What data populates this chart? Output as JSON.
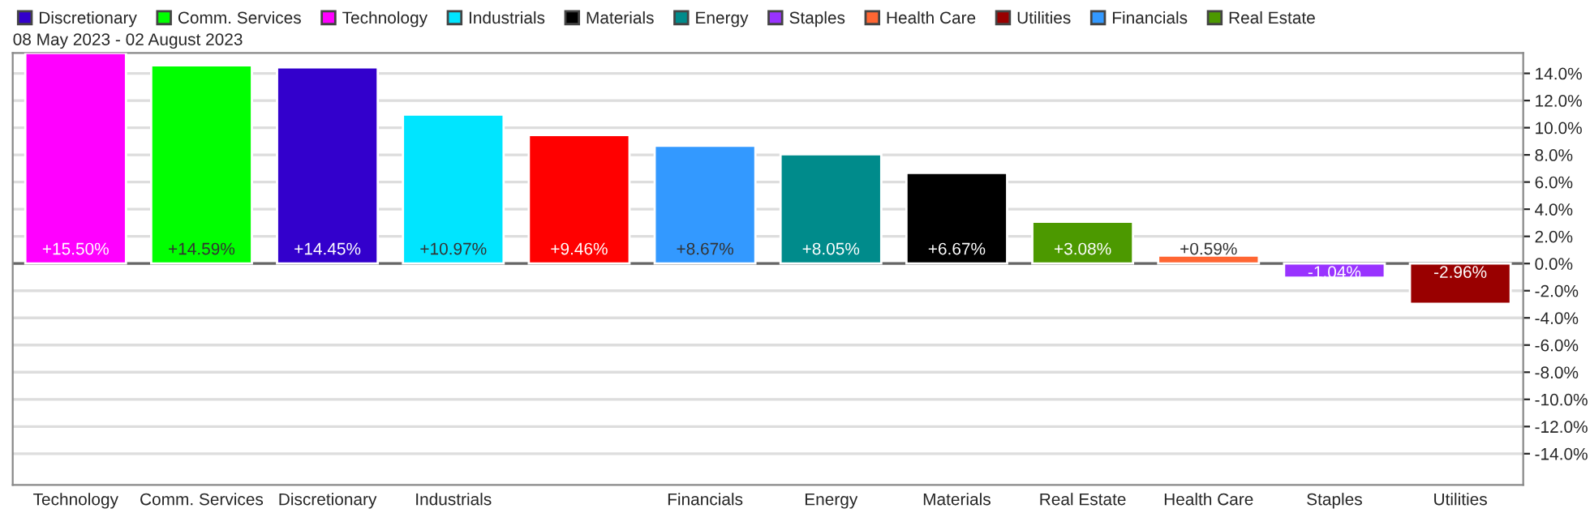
{
  "chart_data": {
    "type": "bar",
    "subtitle": "08 May 2023 - 02 August 2023",
    "categories": [
      "Technology",
      "Comm. Services",
      "Discretionary",
      "Industrials",
      null,
      "Financials",
      "Energy",
      "Materials",
      "Real Estate",
      "Health Care",
      "Staples",
      "Utilities"
    ],
    "series": [
      {
        "color": "#ff0000",
        "values": [
          null,
          null,
          null,
          null,
          9.46,
          null,
          null,
          null,
          null,
          null,
          null,
          null
        ],
        "value_labels": [
          null,
          null,
          null,
          null,
          "+9.46%",
          null,
          null,
          null,
          null,
          null,
          null,
          null
        ]
      },
      {
        "name": "Discretionary",
        "color": "#3300cc",
        "values": [
          null,
          null,
          14.45,
          null,
          null,
          null,
          null,
          null,
          null,
          null,
          null,
          null
        ],
        "value_labels": [
          null,
          null,
          "+14.45%",
          null,
          null,
          null,
          null,
          null,
          null,
          null,
          null,
          null
        ]
      },
      {
        "name": "Comm. Services",
        "color": "#00ff00",
        "values": [
          null,
          14.59,
          null,
          null,
          null,
          null,
          null,
          null,
          null,
          null,
          null,
          null
        ],
        "value_labels": [
          null,
          "+14.59%",
          null,
          null,
          null,
          null,
          null,
          null,
          null,
          null,
          null,
          null
        ]
      },
      {
        "name": "Technology",
        "color": "#ff00ff",
        "values": [
          15.5,
          null,
          null,
          null,
          null,
          null,
          null,
          null,
          null,
          null,
          null,
          null
        ],
        "value_labels": [
          "+15.50%",
          null,
          null,
          null,
          null,
          null,
          null,
          null,
          null,
          null,
          null,
          null
        ]
      },
      {
        "name": "Industrials",
        "color": "#00e5ff",
        "values": [
          null,
          null,
          null,
          10.97,
          null,
          null,
          null,
          null,
          null,
          null,
          null,
          null
        ],
        "value_labels": [
          null,
          null,
          null,
          "+10.97%",
          null,
          null,
          null,
          null,
          null,
          null,
          null,
          null
        ]
      },
      {
        "name": "Materials",
        "color": "#000000",
        "values": [
          null,
          null,
          null,
          null,
          null,
          null,
          null,
          6.67,
          null,
          null,
          null,
          null
        ],
        "value_labels": [
          null,
          null,
          null,
          null,
          null,
          null,
          null,
          "+6.67%",
          null,
          null,
          null,
          null
        ]
      },
      {
        "name": "Energy",
        "color": "#008b8b",
        "values": [
          null,
          null,
          null,
          null,
          null,
          null,
          8.05,
          null,
          null,
          null,
          null,
          null
        ],
        "value_labels": [
          null,
          null,
          null,
          null,
          null,
          null,
          "+8.05%",
          null,
          null,
          null,
          null,
          null
        ]
      },
      {
        "name": "Staples",
        "color": "#9933ff",
        "values": [
          null,
          null,
          null,
          null,
          null,
          null,
          null,
          null,
          null,
          null,
          -1.04,
          null
        ],
        "value_labels": [
          null,
          null,
          null,
          null,
          null,
          null,
          null,
          null,
          null,
          null,
          "-1.04%",
          null
        ]
      },
      {
        "name": "Health Care",
        "color": "#ff6633",
        "values": [
          null,
          null,
          null,
          null,
          null,
          null,
          null,
          null,
          null,
          0.59,
          null,
          null
        ],
        "value_labels": [
          null,
          null,
          null,
          null,
          null,
          null,
          null,
          null,
          null,
          "+0.59%",
          null,
          null
        ]
      },
      {
        "name": "Utilities",
        "color": "#990000",
        "values": [
          null,
          null,
          null,
          null,
          null,
          null,
          null,
          null,
          null,
          null,
          null,
          -2.96
        ],
        "value_labels": [
          null,
          null,
          null,
          null,
          null,
          null,
          null,
          null,
          null,
          null,
          null,
          "-2.96%"
        ]
      },
      {
        "name": "Financials",
        "color": "#3399ff",
        "values": [
          null,
          null,
          null,
          null,
          null,
          8.67,
          null,
          null,
          null,
          null,
          null,
          null
        ],
        "value_labels": [
          null,
          null,
          null,
          null,
          null,
          "+8.67%",
          null,
          null,
          null,
          null,
          null,
          null
        ]
      },
      {
        "name": "Real Estate",
        "color": "#4c9900",
        "values": [
          null,
          null,
          null,
          null,
          null,
          null,
          null,
          null,
          3.08,
          null,
          null,
          null
        ],
        "value_labels": [
          null,
          null,
          null,
          null,
          null,
          null,
          null,
          null,
          "+3.08%",
          null,
          null,
          null
        ]
      }
    ],
    "ylim": [
      -16.3,
      15.5
    ],
    "yticks": [
      {
        "value": -14,
        "label": "-14.0%"
      },
      {
        "value": -12,
        "label": "-12.0%"
      },
      {
        "value": -10,
        "label": "-10.0%"
      },
      {
        "value": -8,
        "label": "-8.0%"
      },
      {
        "value": -6,
        "label": "-6.0%"
      },
      {
        "value": -4,
        "label": "-4.0%"
      },
      {
        "value": -2,
        "label": "-2.0%"
      },
      {
        "value": 0,
        "label": "0.0%"
      },
      {
        "value": 2,
        "label": "2.0%"
      },
      {
        "value": 4,
        "label": "4.0%"
      },
      {
        "value": 6,
        "label": "6.0%"
      },
      {
        "value": 8,
        "label": "8.0%"
      },
      {
        "value": 10,
        "label": "10.0%"
      },
      {
        "value": 12,
        "label": "12.0%"
      },
      {
        "value": 14,
        "label": "14.0%"
      }
    ],
    "ref_lines": [
      {
        "axis": "y",
        "value": 0,
        "color": "#666666"
      }
    ],
    "grid": "y",
    "legend": "top"
  }
}
